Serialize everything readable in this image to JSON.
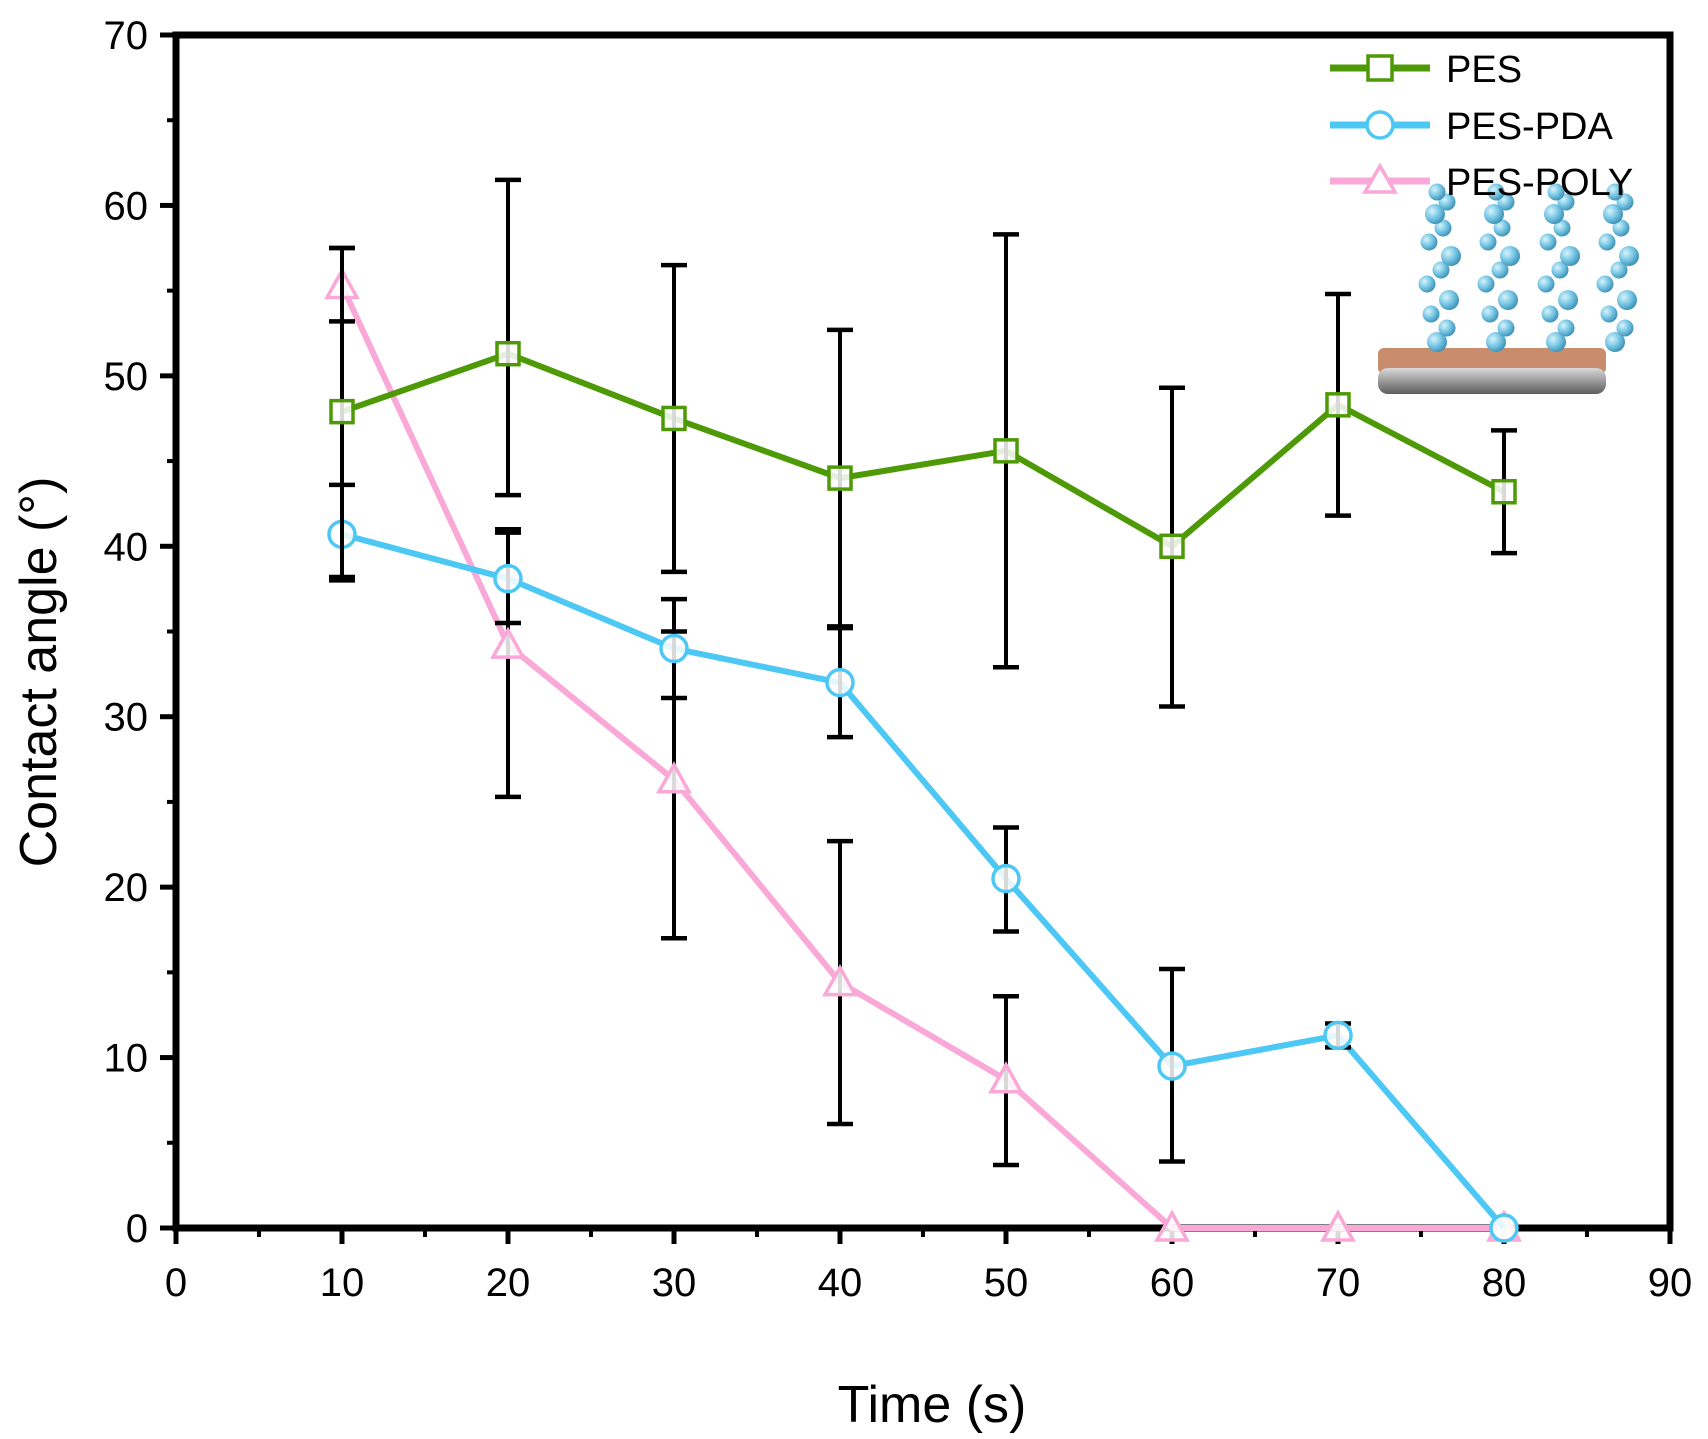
{
  "chart_data": {
    "type": "line",
    "xlabel": "Time (s)",
    "ylabel": "Contact angle (°)",
    "xlim": [
      0,
      90
    ],
    "ylim": [
      0,
      70
    ],
    "xticks": [
      0,
      10,
      20,
      30,
      40,
      50,
      60,
      70,
      80,
      90
    ],
    "yticks": [
      0,
      10,
      20,
      30,
      40,
      50,
      60,
      70
    ],
    "grid": false,
    "legend_position": "top-right",
    "series": [
      {
        "name": "PES",
        "color": "#4e9a06",
        "marker": "square",
        "x": [
          10,
          20,
          30,
          40,
          50,
          60,
          70,
          80
        ],
        "y": [
          47.9,
          51.3,
          47.5,
          44.0,
          45.6,
          40.0,
          48.3,
          43.2
        ],
        "err_low": [
          38.0,
          43.0,
          38.5,
          35.3,
          32.9,
          30.6,
          41.8,
          39.6
        ],
        "err_high": [
          57.5,
          61.5,
          56.5,
          52.7,
          58.3,
          49.3,
          54.8,
          46.8
        ]
      },
      {
        "name": "PES-PDA",
        "color": "#4dc8f5",
        "marker": "circle",
        "x": [
          10,
          20,
          30,
          40,
          50,
          60,
          70,
          80
        ],
        "y": [
          40.7,
          38.1,
          34.0,
          32.0,
          20.5,
          9.5,
          11.3,
          0
        ],
        "err_low": [
          38.2,
          35.5,
          31.1,
          28.8,
          17.4,
          3.9,
          10.6,
          null
        ],
        "err_high": [
          43.6,
          40.8,
          36.9,
          35.2,
          23.5,
          15.2,
          12.0,
          null
        ]
      },
      {
        "name": "PES-POLY",
        "color": "#f9a8d8",
        "marker": "triangle",
        "x": [
          10,
          20,
          30,
          40,
          50,
          60,
          70,
          80
        ],
        "y": [
          55.3,
          34.2,
          26.3,
          14.4,
          8.7,
          0,
          0,
          0
        ],
        "err_low": [
          53.2,
          25.3,
          17.0,
          6.1,
          3.7,
          null,
          null,
          null
        ],
        "err_high": [
          57.5,
          41.0,
          35.0,
          22.7,
          13.6,
          null,
          null,
          null
        ]
      }
    ]
  }
}
